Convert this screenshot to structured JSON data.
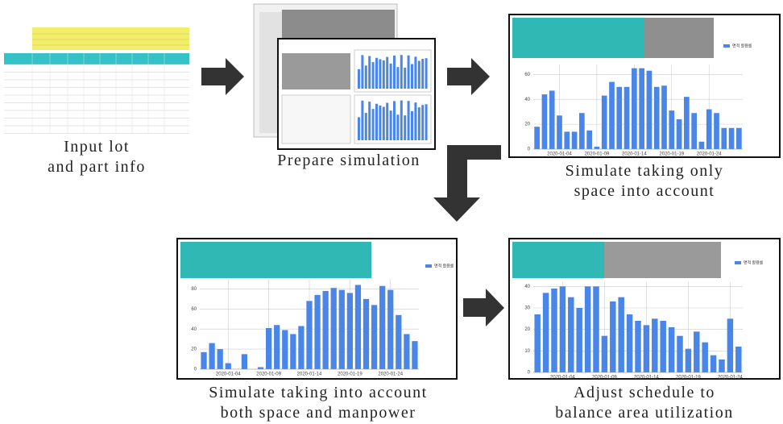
{
  "steps": [
    {
      "caption": [
        "Input lot",
        "and part info"
      ]
    },
    {
      "caption": [
        "Prepare simulation"
      ]
    },
    {
      "caption": [
        "Simulate taking only",
        "space into account"
      ],
      "chart": {
        "type": "bar",
        "series_name": "면적 활용률",
        "color": "#4a86e8",
        "categories": [
          null,
          null,
          null,
          "2020-01-04",
          null,
          null,
          null,
          null,
          "2020-01-09",
          null,
          null,
          null,
          null,
          "2020-01-14",
          null,
          null,
          null,
          null,
          "2020-01-19",
          null,
          null,
          null,
          null,
          "2020-01-24",
          null,
          null,
          null,
          null
        ],
        "values": [
          18,
          44,
          47,
          27,
          14,
          14,
          29,
          15,
          2,
          43,
          54,
          50,
          50,
          65,
          65,
          63,
          50,
          51,
          31,
          24,
          42,
          29,
          6,
          32,
          29,
          17,
          17,
          17
        ],
        "ylim": [
          0,
          68
        ],
        "yticks": [
          0,
          20,
          40,
          60
        ],
        "grid": true
      }
    },
    {
      "caption": [
        "Simulate taking into account",
        "both space and manpower"
      ],
      "chart": {
        "type": "bar",
        "series_name": "면적 활용률",
        "color": "#4a86e8",
        "categories": [
          null,
          null,
          null,
          "2020-01-04",
          null,
          null,
          null,
          null,
          "2020-01-09",
          null,
          null,
          null,
          null,
          "2020-01-14",
          null,
          null,
          null,
          null,
          "2020-01-19",
          null,
          null,
          null,
          null,
          "2020-01-24",
          null,
          null,
          null
        ],
        "values": [
          17,
          26,
          20,
          6,
          0,
          15,
          0,
          2,
          41,
          44,
          39,
          35,
          43,
          68,
          74,
          78,
          81,
          79,
          76,
          84,
          70,
          64,
          83,
          79,
          54,
          35,
          28
        ],
        "ylim": [
          0,
          90
        ],
        "yticks": [
          0,
          20,
          40,
          60,
          80
        ],
        "grid": true
      }
    },
    {
      "caption": [
        "Adjust schedule to",
        "balance area utilization"
      ],
      "chart": {
        "type": "bar",
        "series_name": "면적 활용률",
        "color": "#4a86e8",
        "categories": [
          null,
          null,
          null,
          "2020-01-04",
          null,
          null,
          null,
          null,
          "2020-01-09",
          null,
          null,
          null,
          null,
          "2020-01-14",
          null,
          null,
          null,
          null,
          "2020-01-19",
          null,
          null,
          null,
          null,
          "2020-01-24",
          null
        ],
        "values": [
          27,
          37,
          39,
          40,
          35,
          30,
          40,
          40,
          17,
          33,
          35,
          27,
          24,
          22,
          25,
          24,
          21,
          17,
          11,
          19,
          14,
          8,
          6,
          25,
          12
        ],
        "ylim": [
          0,
          42
        ],
        "yticks": [
          0,
          10,
          20,
          30,
          40
        ],
        "grid": true
      }
    }
  ]
}
